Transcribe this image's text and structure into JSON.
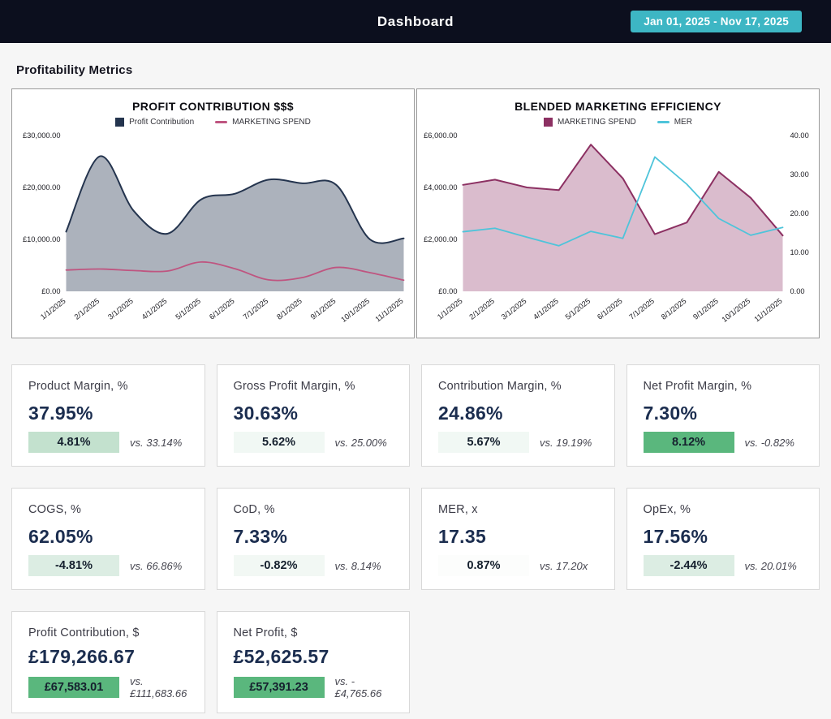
{
  "header": {
    "title": "Dashboard",
    "date_range": "Jan 01, 2025 - Nov 17, 2025",
    "header_bg": "#0c0f1e",
    "badge_color": "#3db6c4"
  },
  "section_title": "Profitability Metrics",
  "chart_data": [
    {
      "type": "area",
      "title": "PROFIT CONTRIBUTION $$$",
      "smooth": true,
      "grid": false,
      "legend_position": "top",
      "categories": [
        "1/1/2025",
        "2/1/2025",
        "3/1/2025",
        "4/1/2025",
        "5/1/2025",
        "6/1/2025",
        "7/1/2025",
        "8/1/2025",
        "9/1/2025",
        "10/1/2025",
        "11/1/2025"
      ],
      "y_axis_left": {
        "range": [
          0,
          30000
        ],
        "tick_labels": [
          "£30,000.00",
          "£20,000.00",
          "£10,000.00",
          "£0.00"
        ]
      },
      "series": [
        {
          "name": "Profit Contribution",
          "kind": "area",
          "axis": "left",
          "color": "#24344e",
          "fill": "rgba(37,52,79,0.38)",
          "values": [
            11500,
            26000,
            15500,
            11100,
            17700,
            18800,
            21500,
            20800,
            20500,
            10000,
            10200
          ]
        },
        {
          "name": "MARKETING SPEND",
          "kind": "line",
          "axis": "left",
          "color": "#bf5580",
          "values": [
            4100,
            4300,
            4000,
            3900,
            5650,
            4350,
            2200,
            2650,
            4600,
            3600,
            2150
          ]
        }
      ]
    },
    {
      "type": "area",
      "title": "BLENDED MARKETING EFFICIENCY",
      "smooth": false,
      "grid": false,
      "legend_position": "top",
      "categories": [
        "1/1/2025",
        "2/1/2025",
        "3/1/2025",
        "4/1/2025",
        "5/1/2025",
        "6/1/2025",
        "7/1/2025",
        "8/1/2025",
        "9/1/2025",
        "10/1/2025",
        "11/1/2025"
      ],
      "y_axis_left": {
        "range": [
          0,
          6000
        ],
        "tick_labels": [
          "£6,000.00",
          "£4,000.00",
          "£2,000.00",
          "£0.00"
        ]
      },
      "y_axis_right": {
        "range": [
          0,
          40
        ],
        "tick_labels": [
          "40.00",
          "30.00",
          "20.00",
          "10.00",
          "0.00"
        ]
      },
      "series": [
        {
          "name": "MARKETING SPEND",
          "kind": "area",
          "axis": "left",
          "color": "#8c3062",
          "fill": "rgba(140,48,98,0.32)",
          "values": [
            4100,
            4300,
            4000,
            3900,
            5650,
            4350,
            2200,
            2650,
            4600,
            3600,
            2150
          ]
        },
        {
          "name": "MER",
          "kind": "line",
          "axis": "right",
          "color": "#4ec4da",
          "values": [
            15.3,
            16.2,
            13.9,
            11.7,
            15.4,
            13.6,
            34.5,
            27.5,
            18.7,
            14.4,
            16.4
          ]
        }
      ]
    }
  ],
  "cards": [
    {
      "label": "Product Margin, %",
      "value": "37.95%",
      "delta": "4.81%",
      "delta_bg": "#c3e1ce",
      "vs": "vs. 33.14%"
    },
    {
      "label": "Gross Profit Margin, %",
      "value": "30.63%",
      "delta": "5.62%",
      "delta_bg": "#f1f8f4",
      "vs": "vs. 25.00%"
    },
    {
      "label": "Contribution Margin, %",
      "value": "24.86%",
      "delta": "5.67%",
      "delta_bg": "#f1f8f4",
      "vs": "vs. 19.19%"
    },
    {
      "label": "Net Profit Margin, %",
      "value": "7.30%",
      "delta": "8.12%",
      "delta_bg": "#5ab77d",
      "vs": "vs. -0.82%"
    },
    {
      "label": "COGS, %",
      "value": "62.05%",
      "delta": "-4.81%",
      "delta_bg": "#dcede3",
      "vs": "vs. 66.86%"
    },
    {
      "label": "CoD, %",
      "value": "7.33%",
      "delta": "-0.82%",
      "delta_bg": "#f2f8f4",
      "vs": "vs. 8.14%"
    },
    {
      "label": "MER, x",
      "value": "17.35",
      "delta": "0.87%",
      "delta_bg": "#fcfdfc",
      "vs": "vs. 17.20x"
    },
    {
      "label": "OpEx, %",
      "value": "17.56%",
      "delta": "-2.44%",
      "delta_bg": "#dcede3",
      "vs": "vs. 20.01%"
    },
    {
      "label": "Profit Contribution, $",
      "value": "£179,266.67",
      "delta": "£67,583.01",
      "delta_bg": "#5ab77d",
      "vs": "vs. £111,683.66"
    },
    {
      "label": "Net Profit, $",
      "value": "£52,625.57",
      "delta": "£57,391.23",
      "delta_bg": "#5ab77d",
      "vs": "vs. -£4,765.66"
    }
  ]
}
